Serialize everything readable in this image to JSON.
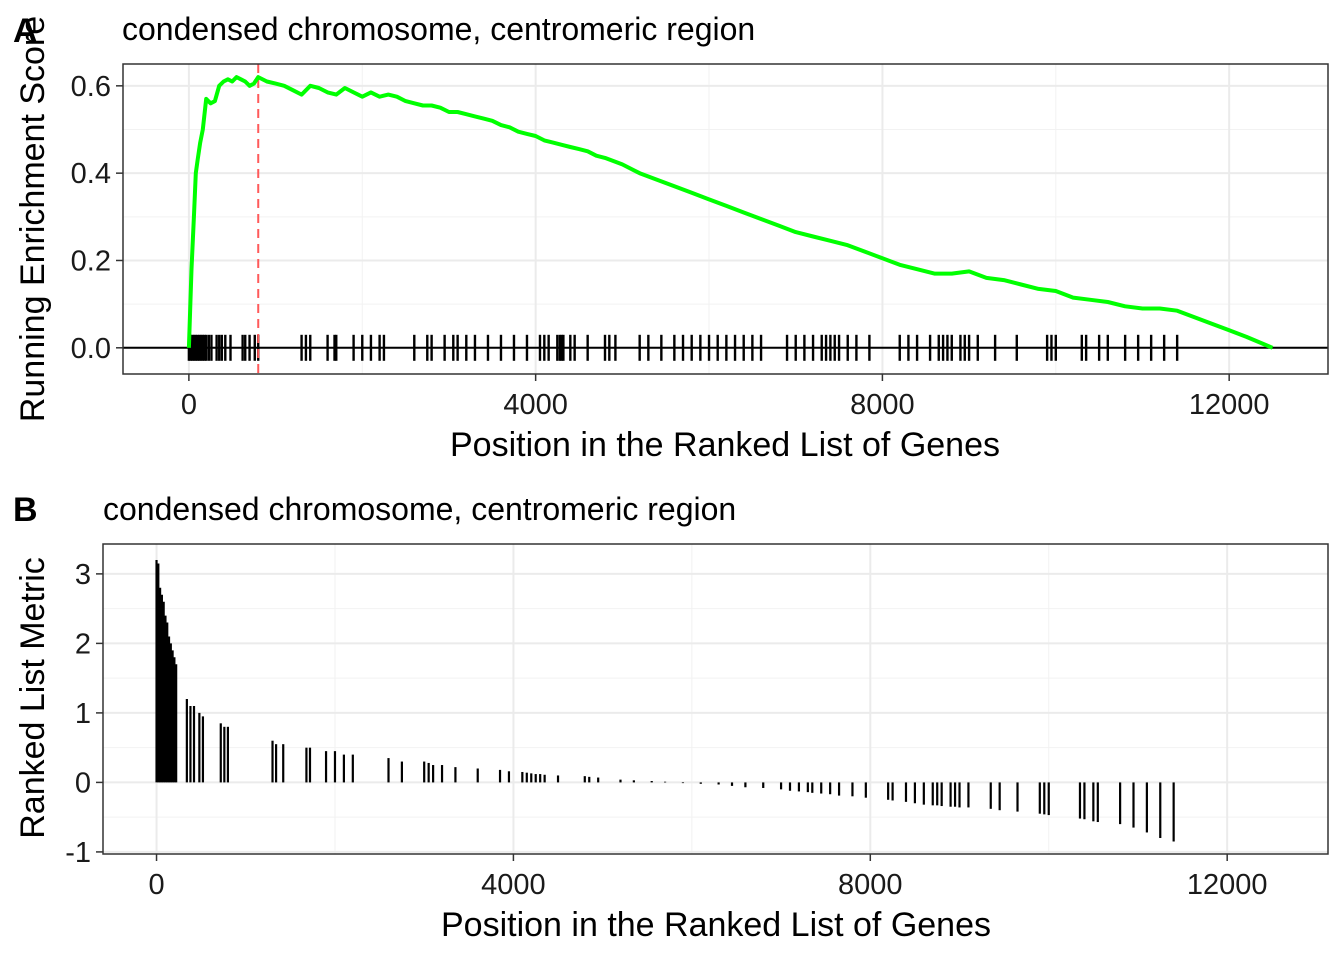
{
  "chart_data": [
    {
      "panel": "A",
      "type": "line",
      "title": "condensed chromosome, centromeric region",
      "xlabel": "Position in the Ranked List of Genes",
      "ylabel": "Running Enrichment Score",
      "xlim": [
        -760,
        13140
      ],
      "ylim": [
        -0.06,
        0.65
      ],
      "x_ticks": [
        "0",
        "4000",
        "8000",
        "12000"
      ],
      "x_tick_values": [
        0,
        4000,
        8000,
        12000
      ],
      "y_ticks": [
        "0.0",
        "0.2",
        "0.4",
        "0.6"
      ],
      "y_tick_values": [
        0,
        0.2,
        0.4,
        0.6
      ],
      "grid": true,
      "line_color": "#00ff00",
      "max_es_position": 800,
      "max_es_line_color": "#ff5a5a",
      "series": [
        {
          "x": [
            0,
            30,
            60,
            80,
            100,
            130,
            160,
            200,
            250,
            300,
            350,
            400,
            450,
            500,
            550,
            600,
            650,
            700,
            750,
            800,
            900,
            1000,
            1100,
            1200,
            1300,
            1400,
            1500,
            1600,
            1700,
            1800,
            1900,
            2000,
            2100,
            2200,
            2300,
            2400,
            2500,
            2600,
            2700,
            2800,
            2900,
            3000,
            3100,
            3200,
            3300,
            3400,
            3500,
            3600,
            3700,
            3800,
            3900,
            4000,
            4100,
            4200,
            4300,
            4400,
            4500,
            4600,
            4700,
            4800,
            5000,
            5200,
            5400,
            5600,
            5800,
            6000,
            6200,
            6400,
            6600,
            6800,
            7000,
            7200,
            7400,
            7600,
            7800,
            8000,
            8200,
            8400,
            8600,
            8800,
            9000,
            9200,
            9400,
            9600,
            9800,
            10000,
            10200,
            10400,
            10600,
            10800,
            11000,
            11200,
            11400,
            11600,
            11800,
            12000,
            12200,
            12500
          ],
          "y": [
            0.0,
            0.18,
            0.31,
            0.4,
            0.43,
            0.47,
            0.5,
            0.57,
            0.56,
            0.565,
            0.6,
            0.61,
            0.615,
            0.61,
            0.62,
            0.615,
            0.61,
            0.6,
            0.605,
            0.62,
            0.61,
            0.605,
            0.6,
            0.59,
            0.58,
            0.6,
            0.595,
            0.585,
            0.58,
            0.595,
            0.585,
            0.575,
            0.585,
            0.575,
            0.58,
            0.575,
            0.565,
            0.56,
            0.555,
            0.555,
            0.55,
            0.54,
            0.54,
            0.535,
            0.53,
            0.525,
            0.52,
            0.51,
            0.505,
            0.495,
            0.49,
            0.485,
            0.475,
            0.47,
            0.465,
            0.46,
            0.455,
            0.45,
            0.44,
            0.435,
            0.42,
            0.4,
            0.385,
            0.37,
            0.355,
            0.34,
            0.325,
            0.31,
            0.295,
            0.28,
            0.265,
            0.255,
            0.245,
            0.235,
            0.22,
            0.205,
            0.19,
            0.18,
            0.17,
            0.17,
            0.175,
            0.16,
            0.155,
            0.145,
            0.135,
            0.13,
            0.115,
            0.11,
            0.105,
            0.095,
            0.09,
            0.09,
            0.085,
            0.07,
            0.055,
            0.04,
            0.025,
            0.0
          ]
        }
      ],
      "hits": [
        0,
        20,
        40,
        60,
        80,
        100,
        120,
        140,
        160,
        180,
        200,
        230,
        260,
        320,
        350,
        380,
        420,
        480,
        620,
        650,
        700,
        760,
        800,
        1300,
        1350,
        1400,
        1600,
        1680,
        1700,
        1900,
        2000,
        2100,
        2200,
        2250,
        2600,
        2750,
        2800,
        2950,
        3050,
        3100,
        3200,
        3300,
        3450,
        3600,
        3750,
        3900,
        4050,
        4100,
        4150,
        4250,
        4280,
        4300,
        4320,
        4400,
        4450,
        4600,
        4800,
        4850,
        4920,
        5200,
        5300,
        5450,
        5600,
        5700,
        5800,
        5900,
        6000,
        6100,
        6200,
        6300,
        6400,
        6500,
        6600,
        6900,
        7000,
        7100,
        7200,
        7300,
        7350,
        7400,
        7450,
        7500,
        7600,
        7700,
        7850,
        8200,
        8300,
        8400,
        8550,
        8650,
        8700,
        8750,
        8800,
        8900,
        8950,
        9000,
        9100,
        9300,
        9550,
        9900,
        9950,
        10000,
        10300,
        10350,
        10500,
        10600,
        10800,
        10950,
        11100,
        11250,
        11400
      ]
    },
    {
      "panel": "B",
      "type": "bar",
      "title": "condensed chromosome, centromeric region",
      "xlabel": "Position in the Ranked List of Genes",
      "ylabel": "Ranked List Metric",
      "xlim": [
        -600,
        13130
      ],
      "ylim": [
        -1.03,
        3.43
      ],
      "x_ticks": [
        "0",
        "4000",
        "8000",
        "12000"
      ],
      "x_tick_values": [
        0,
        4000,
        8000,
        12000
      ],
      "y_ticks": [
        "-1",
        "0",
        "1",
        "2",
        "3"
      ],
      "y_tick_values": [
        -1,
        0,
        1,
        2,
        3
      ],
      "grid": true,
      "x": [
        0,
        20,
        40,
        60,
        80,
        100,
        120,
        140,
        160,
        180,
        200,
        220,
        340,
        380,
        420,
        480,
        520,
        720,
        760,
        800,
        1300,
        1340,
        1420,
        1680,
        1720,
        1900,
        2000,
        2100,
        2200,
        2600,
        2750,
        3000,
        3050,
        3100,
        3200,
        3350,
        3600,
        3850,
        3950,
        4100,
        4150,
        4200,
        4250,
        4300,
        4350,
        4500,
        4800,
        4850,
        4950,
        5200,
        5350,
        5550,
        5700,
        5900,
        6100,
        6300,
        6450,
        6600,
        6800,
        7000,
        7100,
        7200,
        7300,
        7350,
        7450,
        7550,
        7650,
        7800,
        7950,
        8200,
        8250,
        8400,
        8500,
        8600,
        8700,
        8750,
        8800,
        8900,
        8950,
        9000,
        9100,
        9350,
        9450,
        9650,
        9900,
        9950,
        10000,
        10350,
        10400,
        10500,
        10550,
        10800,
        10950,
        11100,
        11250,
        11400
      ],
      "values": [
        3.2,
        3.15,
        2.8,
        2.7,
        2.6,
        2.4,
        2.3,
        2.1,
        2.0,
        1.9,
        1.8,
        1.7,
        1.2,
        1.1,
        1.1,
        1.0,
        0.95,
        0.85,
        0.8,
        0.8,
        0.6,
        0.55,
        0.55,
        0.5,
        0.5,
        0.45,
        0.45,
        0.4,
        0.4,
        0.35,
        0.3,
        0.3,
        0.28,
        0.25,
        0.25,
        0.22,
        0.2,
        0.18,
        0.16,
        0.15,
        0.14,
        0.13,
        0.12,
        0.12,
        0.11,
        0.1,
        0.09,
        0.08,
        0.07,
        0.04,
        0.03,
        0.02,
        0.01,
        -0.01,
        -0.02,
        -0.03,
        -0.05,
        -0.07,
        -0.08,
        -0.1,
        -0.12,
        -0.13,
        -0.14,
        -0.15,
        -0.16,
        -0.17,
        -0.19,
        -0.2,
        -0.22,
        -0.25,
        -0.26,
        -0.28,
        -0.3,
        -0.32,
        -0.33,
        -0.33,
        -0.34,
        -0.35,
        -0.35,
        -0.36,
        -0.36,
        -0.38,
        -0.4,
        -0.42,
        -0.45,
        -0.46,
        -0.47,
        -0.52,
        -0.53,
        -0.56,
        -0.57,
        -0.6,
        -0.65,
        -0.72,
        -0.8,
        -0.85
      ]
    }
  ],
  "panel_tags": [
    "A",
    "B"
  ]
}
